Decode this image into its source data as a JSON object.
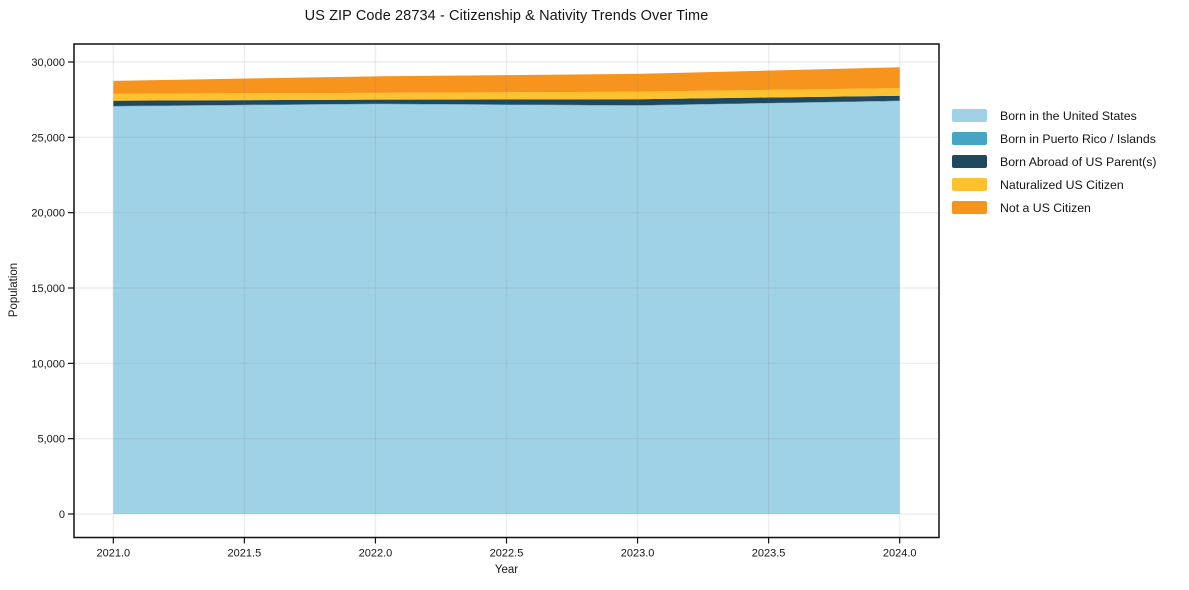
{
  "chart_data": {
    "type": "area",
    "stacked": true,
    "title": "US ZIP Code 28734 - Citizenship & Nativity Trends Over Time",
    "xlabel": "Year",
    "ylabel": "Population",
    "x": [
      2021,
      2022,
      2023,
      2024
    ],
    "series": [
      {
        "name": "Born in the United States",
        "color": "#a0d2e7",
        "values": [
          27050,
          27200,
          27100,
          27400
        ]
      },
      {
        "name": "Born in Puerto Rico / Islands",
        "color": "#46a5c5",
        "values": [
          30,
          30,
          30,
          30
        ]
      },
      {
        "name": "Born Abroad of US Parent(s)",
        "color": "#20495e",
        "values": [
          350,
          270,
          400,
          330
        ]
      },
      {
        "name": "Naturalized US Citizen",
        "color": "#fdc22d",
        "values": [
          470,
          450,
          500,
          510
        ]
      },
      {
        "name": "Not a US Citizen",
        "color": "#f7941e",
        "values": [
          850,
          1100,
          1180,
          1380
        ]
      }
    ],
    "xticks": {
      "values": [
        2021.0,
        2021.5,
        2022.0,
        2022.5,
        2023.0,
        2023.5,
        2024.0
      ],
      "labels": [
        "2021.0",
        "2021.5",
        "2022.0",
        "2022.5",
        "2023.0",
        "2023.5",
        "2024.0"
      ]
    },
    "yticks": {
      "values": [
        0,
        5000,
        10000,
        15000,
        20000,
        25000,
        30000
      ],
      "labels": [
        "0",
        "5,000",
        "10,000",
        "15,000",
        "20,000",
        "25,000",
        "30,000"
      ]
    },
    "xlim": [
      2020.85,
      2024.15
    ],
    "ylim": [
      -1560,
      31195
    ],
    "grid": true,
    "grid_color": "rgba(120,120,120,0.13)",
    "spine_color": "#111111",
    "legend_position": "right"
  }
}
